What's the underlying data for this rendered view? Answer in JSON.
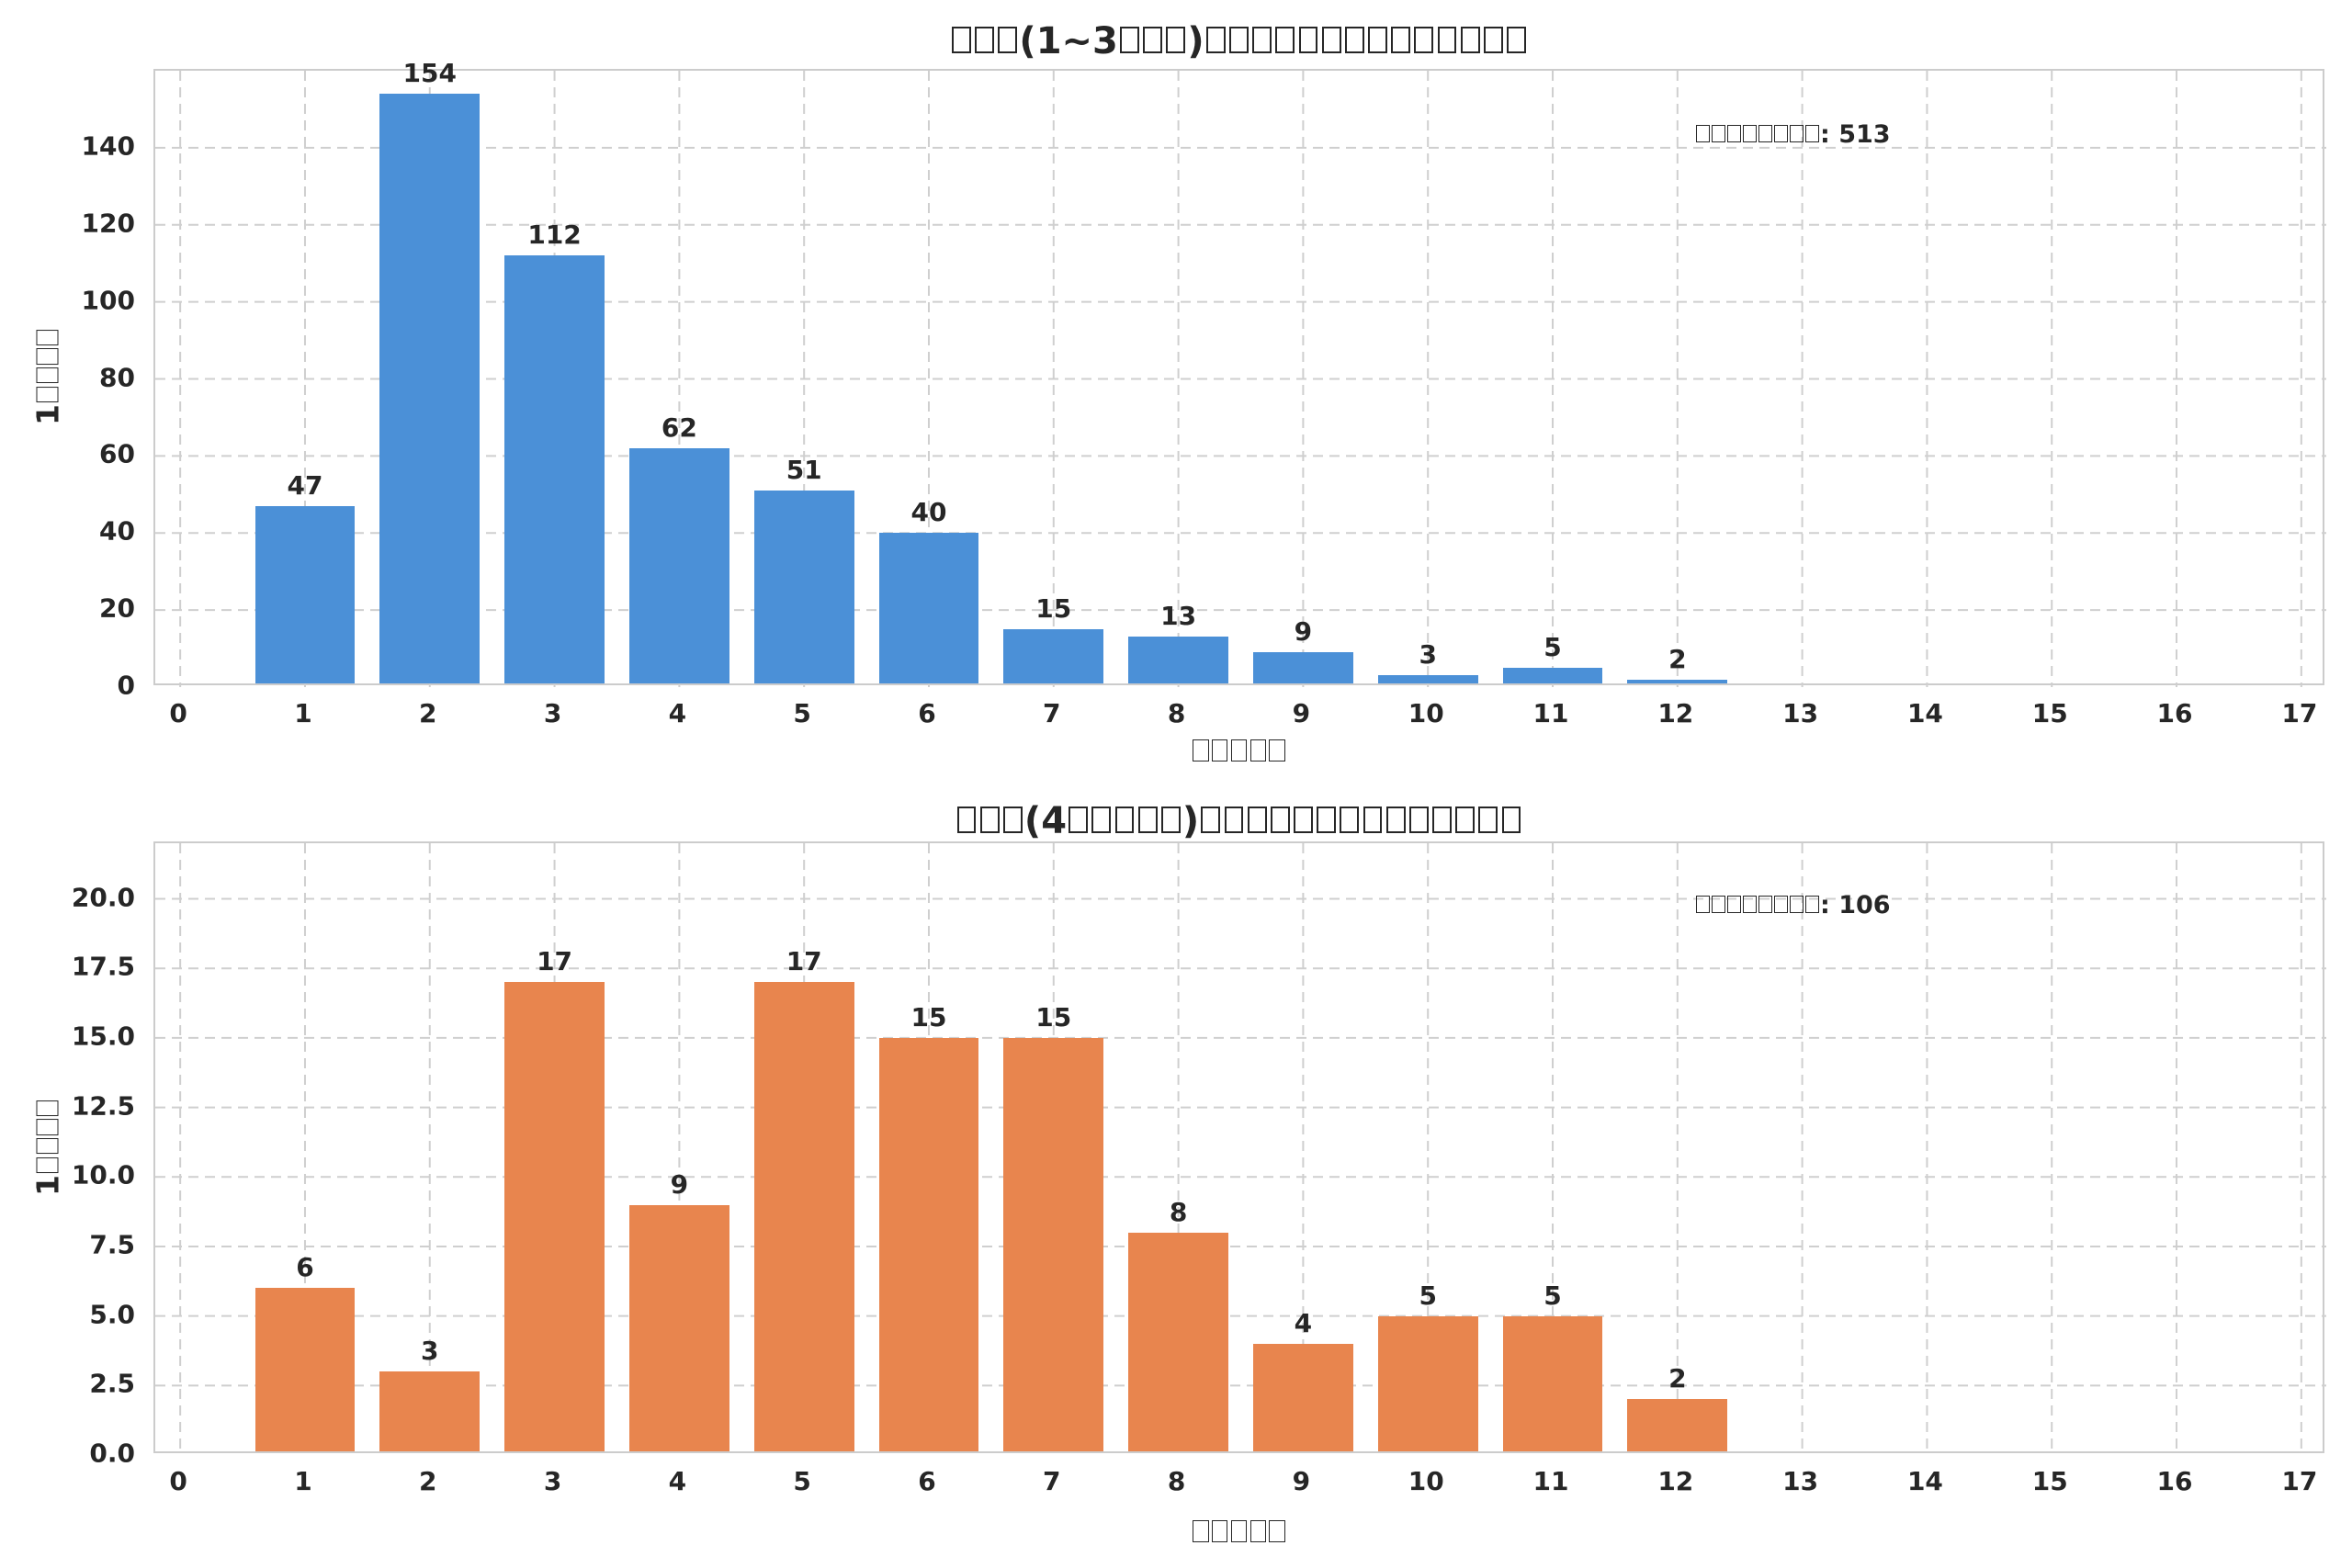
{
  "figure": {
    "background": "#ffffff",
    "grid_color": "#cfcfcf",
    "spine_color": "#cccccc",
    "text_color": "#262626"
  },
  "chart_data": [
    {
      "type": "bar",
      "title": "□□□(1~3□□□)□□□□□□□□□□□□□□",
      "xlabel": "□□□□□",
      "ylabel": "1□□□□",
      "annotation": "□□□□□□□□: 513",
      "annotation_value": 513,
      "bar_color": "#4B90D7",
      "bar_width": 0.8,
      "x": [
        1,
        2,
        3,
        4,
        5,
        6,
        7,
        8,
        9,
        10,
        11,
        12
      ],
      "values": [
        47,
        154,
        112,
        62,
        51,
        40,
        15,
        13,
        9,
        3,
        5,
        2
      ],
      "xticks": [
        0,
        1,
        2,
        3,
        4,
        5,
        6,
        7,
        8,
        9,
        10,
        11,
        12,
        13,
        14,
        15,
        16,
        17
      ],
      "yticks": [
        0,
        20,
        40,
        60,
        80,
        100,
        120,
        140
      ],
      "ytick_labels": [
        "0",
        "20",
        "40",
        "60",
        "80",
        "100",
        "120",
        "140"
      ],
      "xlim": [
        -0.2,
        17.2
      ],
      "ylim": [
        0,
        160
      ],
      "grid": true,
      "legend": null
    },
    {
      "type": "bar",
      "title": "□□□(4□□□□□)□□□□□□□□□□□□□□",
      "xlabel": "□□□□□",
      "ylabel": "1□□□□",
      "annotation": "□□□□□□□□: 106",
      "annotation_value": 106,
      "bar_color": "#E8854E",
      "bar_width": 0.8,
      "x": [
        1,
        2,
        3,
        4,
        5,
        6,
        7,
        8,
        9,
        10,
        11,
        12
      ],
      "values": [
        6,
        3,
        17,
        9,
        17,
        15,
        15,
        8,
        4,
        5,
        5,
        2
      ],
      "xticks": [
        0,
        1,
        2,
        3,
        4,
        5,
        6,
        7,
        8,
        9,
        10,
        11,
        12,
        13,
        14,
        15,
        16,
        17
      ],
      "yticks": [
        0,
        2.5,
        5,
        7.5,
        10,
        12.5,
        15,
        17.5,
        20
      ],
      "ytick_labels": [
        "0.0",
        "2.5",
        "5.0",
        "7.5",
        "10.0",
        "12.5",
        "15.0",
        "17.5",
        "20.0"
      ],
      "xlim": [
        -0.2,
        17.2
      ],
      "ylim": [
        0,
        22
      ],
      "grid": true,
      "legend": null
    }
  ]
}
